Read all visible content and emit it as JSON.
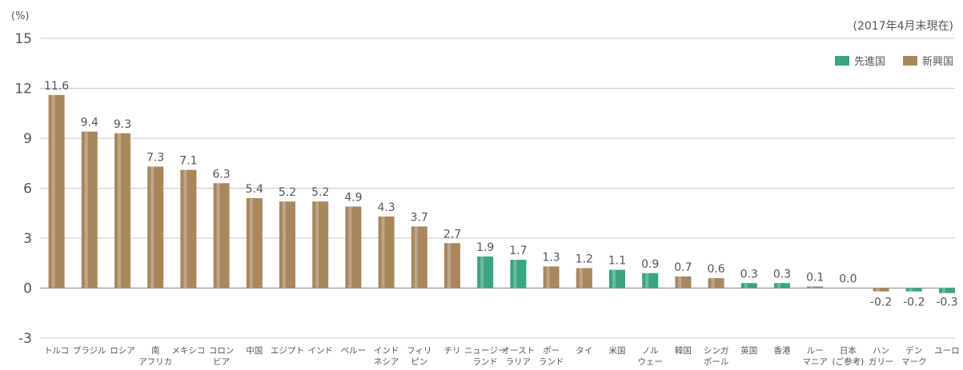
{
  "chart_data": {
    "type": "bar",
    "unit_label": "(%)",
    "note": "(2017年4月末現在)",
    "ylim": [
      -3,
      15
    ],
    "yticks": [
      -3,
      0,
      3,
      6,
      9,
      12,
      15
    ],
    "grid": true,
    "legend_position": "top-right",
    "legend": [
      {
        "name": "先進国",
        "color": "#3aa57f"
      },
      {
        "name": "新興国",
        "color": "#a8875e"
      }
    ],
    "categories": [
      [
        "トルコ"
      ],
      [
        "ブラジル"
      ],
      [
        "ロシア"
      ],
      [
        "南",
        "アフリカ"
      ],
      [
        "メキシコ"
      ],
      [
        "コロン",
        "ビア"
      ],
      [
        "中国"
      ],
      [
        "エジプト"
      ],
      [
        "インド"
      ],
      [
        "ペルー"
      ],
      [
        "インド",
        "ネシア"
      ],
      [
        "フィリ",
        "ピン"
      ],
      [
        "チリ"
      ],
      [
        "ニュージー",
        "ランド"
      ],
      [
        "オースト",
        "ラリア"
      ],
      [
        "ポー",
        "ランド"
      ],
      [
        "タイ"
      ],
      [
        "米国"
      ],
      [
        "ノル",
        "ウェー"
      ],
      [
        "韓国"
      ],
      [
        "シンガ",
        "ポール"
      ],
      [
        "英国"
      ],
      [
        "香港"
      ],
      [
        "ルー",
        "マニア"
      ],
      [
        "日本",
        "(ご参考)"
      ],
      [
        "ハン",
        "ガリー"
      ],
      [
        "デン",
        "マーク"
      ],
      [
        "ユーロ"
      ]
    ],
    "values": [
      11.6,
      9.4,
      9.3,
      7.3,
      7.1,
      6.3,
      5.4,
      5.2,
      5.2,
      4.9,
      4.3,
      3.7,
      2.7,
      1.9,
      1.7,
      1.3,
      1.2,
      1.1,
      0.9,
      0.7,
      0.6,
      0.3,
      0.3,
      0.1,
      0.0,
      -0.2,
      -0.2,
      -0.3
    ],
    "value_labels": [
      "11.6",
      "9.4",
      "9.3",
      "7.3",
      "7.1",
      "6.3",
      "5.4",
      "5.2",
      "5.2",
      "4.9",
      "4.3",
      "3.7",
      "2.7",
      "1.9",
      "1.7",
      "1.3",
      "1.2",
      "1.1",
      "0.9",
      "0.7",
      "0.6",
      "0.3",
      "0.3",
      "0.1",
      "0.0",
      "-0.2",
      "-0.2",
      "-0.3"
    ],
    "groups": [
      "新興国",
      "新興国",
      "新興国",
      "新興国",
      "新興国",
      "新興国",
      "新興国",
      "新興国",
      "新興国",
      "新興国",
      "新興国",
      "新興国",
      "新興国",
      "先進国",
      "先進国",
      "新興国",
      "新興国",
      "先進国",
      "先進国",
      "新興国",
      "新興国",
      "先進国",
      "先進国",
      "新興国",
      "先進国",
      "新興国",
      "先進国",
      "先進国"
    ]
  }
}
